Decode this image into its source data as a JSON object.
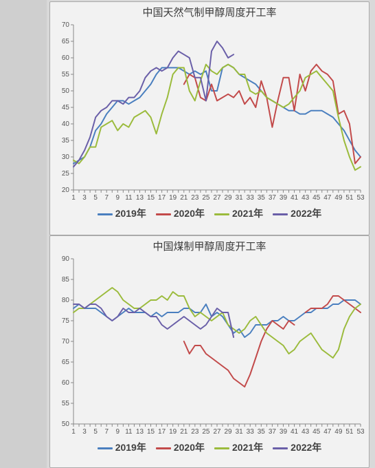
{
  "chart1": {
    "type": "line",
    "title": "中国天然气制甲醇周度开工率",
    "title_fontsize": 15,
    "background_color": "#f2f2f2",
    "plot_bg": "#f2f2f2",
    "axis_color": "#888888",
    "tick_color": "#555555",
    "label_fontsize": 10,
    "xlim": [
      1,
      53
    ],
    "xtick_step": 2,
    "ylim": [
      20,
      70
    ],
    "ytick_step": 5,
    "line_width": 2,
    "series": [
      {
        "name": "2019年",
        "color": "#4a7fbf",
        "values": [
          28,
          29,
          30,
          33,
          38,
          40,
          43,
          45,
          47,
          47,
          46,
          47,
          48,
          50,
          52,
          55,
          57,
          57,
          57,
          57,
          56,
          55,
          56,
          55,
          56,
          50,
          50,
          57,
          58,
          57,
          55,
          54,
          53,
          52,
          50,
          48,
          47,
          46,
          45,
          44,
          44,
          43,
          43,
          44,
          44,
          44,
          43,
          42,
          40,
          38,
          35,
          32,
          30
        ]
      },
      {
        "name": "2020年",
        "color": "#c24a4a",
        "values": [
          null,
          null,
          null,
          null,
          null,
          null,
          null,
          null,
          null,
          null,
          null,
          null,
          null,
          null,
          null,
          null,
          null,
          null,
          null,
          null,
          52,
          55,
          54,
          48,
          47,
          52,
          47,
          48,
          49,
          48,
          50,
          46,
          48,
          45,
          53,
          48,
          39,
          47,
          54,
          54,
          44,
          55,
          50,
          56,
          58,
          56,
          55,
          53,
          43,
          44,
          40,
          28,
          30
        ]
      },
      {
        "name": "2021年",
        "color": "#9bbb3c",
        "values": [
          29,
          28,
          30,
          33,
          33,
          39,
          40,
          41,
          38,
          40,
          39,
          42,
          43,
          44,
          42,
          37,
          43,
          48,
          55,
          57,
          57,
          50,
          47,
          53,
          58,
          56,
          55,
          57,
          58,
          57,
          55,
          55,
          50,
          49,
          50,
          48,
          47,
          46,
          45,
          46,
          48,
          50,
          54,
          55,
          56,
          54,
          52,
          50,
          42,
          35,
          30,
          26,
          27
        ]
      },
      {
        "name": "2022年",
        "color": "#6a5fa8",
        "values": [
          27,
          29,
          32,
          36,
          42,
          44,
          45,
          47,
          47,
          46,
          48,
          48,
          50,
          54,
          56,
          57,
          56,
          57,
          60,
          62,
          61,
          60,
          54,
          54,
          47,
          62,
          65,
          63,
          60,
          61,
          null,
          null,
          null,
          null,
          null,
          null,
          null,
          null,
          null,
          null,
          null,
          null,
          null,
          null,
          null,
          null,
          null,
          null,
          null,
          null,
          null,
          null,
          null
        ]
      }
    ],
    "legend_items": [
      "2019年",
      "2020年",
      "2021年",
      "2022年"
    ]
  },
  "chart2": {
    "type": "line",
    "title": "中国煤制甲醇周度开工率",
    "title_fontsize": 15,
    "background_color": "#f2f2f2",
    "plot_bg": "#f2f2f2",
    "axis_color": "#888888",
    "tick_color": "#555555",
    "label_fontsize": 10,
    "xlim": [
      1,
      53
    ],
    "xtick_step": 2,
    "ylim": [
      50,
      90
    ],
    "ytick_step": 5,
    "line_width": 2,
    "series": [
      {
        "name": "2019年",
        "color": "#4a7fbf",
        "values": [
          78,
          79,
          78,
          78,
          78,
          77,
          76,
          75,
          76,
          77,
          78,
          77,
          77,
          77,
          76,
          77,
          76,
          77,
          77,
          77,
          78,
          78,
          77,
          77,
          79,
          76,
          77,
          76,
          74,
          72,
          73,
          71,
          72,
          74,
          74,
          74,
          75,
          75,
          76,
          75,
          75,
          76,
          77,
          77,
          78,
          78,
          78,
          79,
          79,
          80,
          80,
          80,
          79
        ]
      },
      {
        "name": "2020年",
        "color": "#c24a4a",
        "values": [
          null,
          null,
          null,
          null,
          null,
          null,
          null,
          null,
          null,
          null,
          null,
          null,
          null,
          null,
          null,
          null,
          null,
          null,
          null,
          null,
          70,
          67,
          69,
          69,
          67,
          66,
          65,
          64,
          63,
          61,
          60,
          59,
          62,
          66,
          70,
          73,
          75,
          74,
          73,
          75,
          74,
          null,
          77,
          78,
          78,
          78,
          79,
          81,
          81,
          80,
          79,
          78,
          77
        ]
      },
      {
        "name": "2021年",
        "color": "#9bbb3c",
        "values": [
          77,
          78,
          78,
          79,
          80,
          81,
          82,
          83,
          82,
          80,
          79,
          78,
          78,
          79,
          80,
          80,
          81,
          80,
          82,
          81,
          81,
          78,
          76,
          77,
          76,
          75,
          76,
          77,
          74,
          73,
          72,
          73,
          75,
          76,
          74,
          72,
          71,
          70,
          69,
          67,
          68,
          70,
          71,
          72,
          70,
          68,
          67,
          66,
          68,
          73,
          76,
          78,
          79
        ]
      },
      {
        "name": "2022年",
        "color": "#6a5fa8",
        "values": [
          79,
          79,
          78,
          79,
          79,
          78,
          76,
          75,
          76,
          78,
          77,
          77,
          78,
          77,
          76,
          76,
          74,
          73,
          74,
          75,
          76,
          75,
          74,
          73,
          74,
          76,
          78,
          77,
          77,
          71,
          null,
          null,
          null,
          null,
          null,
          null,
          null,
          null,
          null,
          null,
          null,
          null,
          null,
          null,
          null,
          null,
          null,
          null,
          null,
          null,
          null,
          null,
          null
        ]
      }
    ],
    "legend_items": [
      "2019年",
      "2020年",
      "2021年",
      "2022年"
    ]
  }
}
